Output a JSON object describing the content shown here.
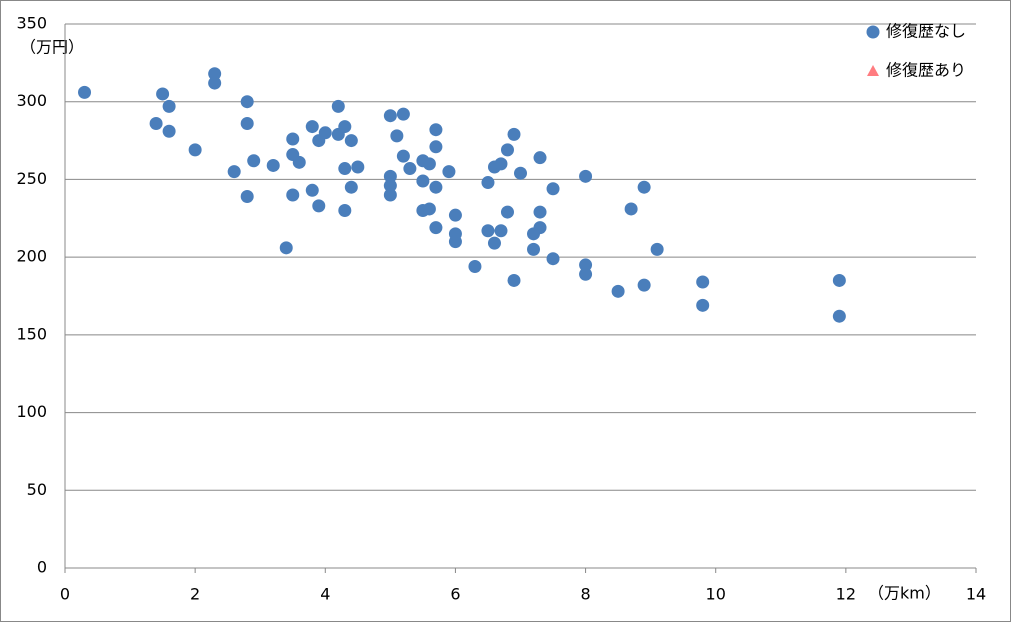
{
  "chart_data": {
    "type": "scatter",
    "y_unit_label": "（万円）",
    "x_unit_label": "（万km）",
    "xlim": [
      0,
      14
    ],
    "xticks": [
      0,
      2,
      4,
      6,
      8,
      10,
      12,
      14
    ],
    "ylim": [
      0,
      350
    ],
    "yticks": [
      0,
      50,
      100,
      150,
      200,
      250,
      300,
      350
    ],
    "grid": true,
    "legend": "top-right",
    "series": [
      {
        "name": "修復歴なし",
        "color": "#4a7ebb",
        "marker": "circle",
        "x": [
          0.3,
          1.5,
          1.6,
          1.4,
          1.6,
          2.0,
          2.3,
          2.3,
          2.8,
          2.8,
          2.6,
          2.9,
          2.8,
          3.2,
          3.4,
          3.5,
          3.5,
          3.6,
          3.5,
          3.8,
          3.9,
          4.0,
          3.8,
          3.9,
          4.2,
          4.2,
          4.3,
          4.4,
          4.3,
          4.5,
          4.4,
          4.3,
          5.0,
          5.2,
          5.1,
          5.2,
          5.3,
          5.0,
          5.0,
          5.0,
          5.5,
          5.6,
          5.7,
          5.7,
          5.5,
          5.7,
          5.9,
          5.5,
          5.6,
          6.0,
          5.7,
          6.0,
          6.0,
          6.3,
          6.5,
          6.6,
          6.7,
          6.8,
          6.9,
          7.0,
          7.3,
          6.5,
          6.7,
          6.8,
          6.6,
          6.9,
          7.3,
          7.3,
          7.2,
          7.2,
          7.5,
          7.5,
          8.0,
          8.0,
          8.0,
          8.5,
          8.7,
          8.9,
          8.9,
          9.1,
          9.8,
          9.8,
          11.9,
          11.9
        ],
        "values": [
          306,
          305,
          297,
          286,
          281,
          269,
          318,
          312,
          300,
          286,
          255,
          262,
          239,
          259,
          206,
          276,
          266,
          261,
          240,
          284,
          275,
          280,
          243,
          233,
          297,
          279,
          284,
          275,
          257,
          258,
          245,
          230,
          291,
          292,
          278,
          265,
          257,
          252,
          246,
          240,
          262,
          260,
          282,
          271,
          249,
          245,
          255,
          230,
          231,
          227,
          219,
          215,
          210,
          194,
          248,
          258,
          260,
          269,
          279,
          254,
          264,
          217,
          217,
          229,
          209,
          185,
          229,
          219,
          215,
          205,
          244,
          199,
          252,
          195,
          189,
          178,
          231,
          245,
          182,
          205,
          184,
          169,
          185,
          162
        ]
      },
      {
        "name": "修復歴あり",
        "color": "#ff7c80",
        "marker": "triangle",
        "x": [],
        "values": []
      }
    ]
  }
}
